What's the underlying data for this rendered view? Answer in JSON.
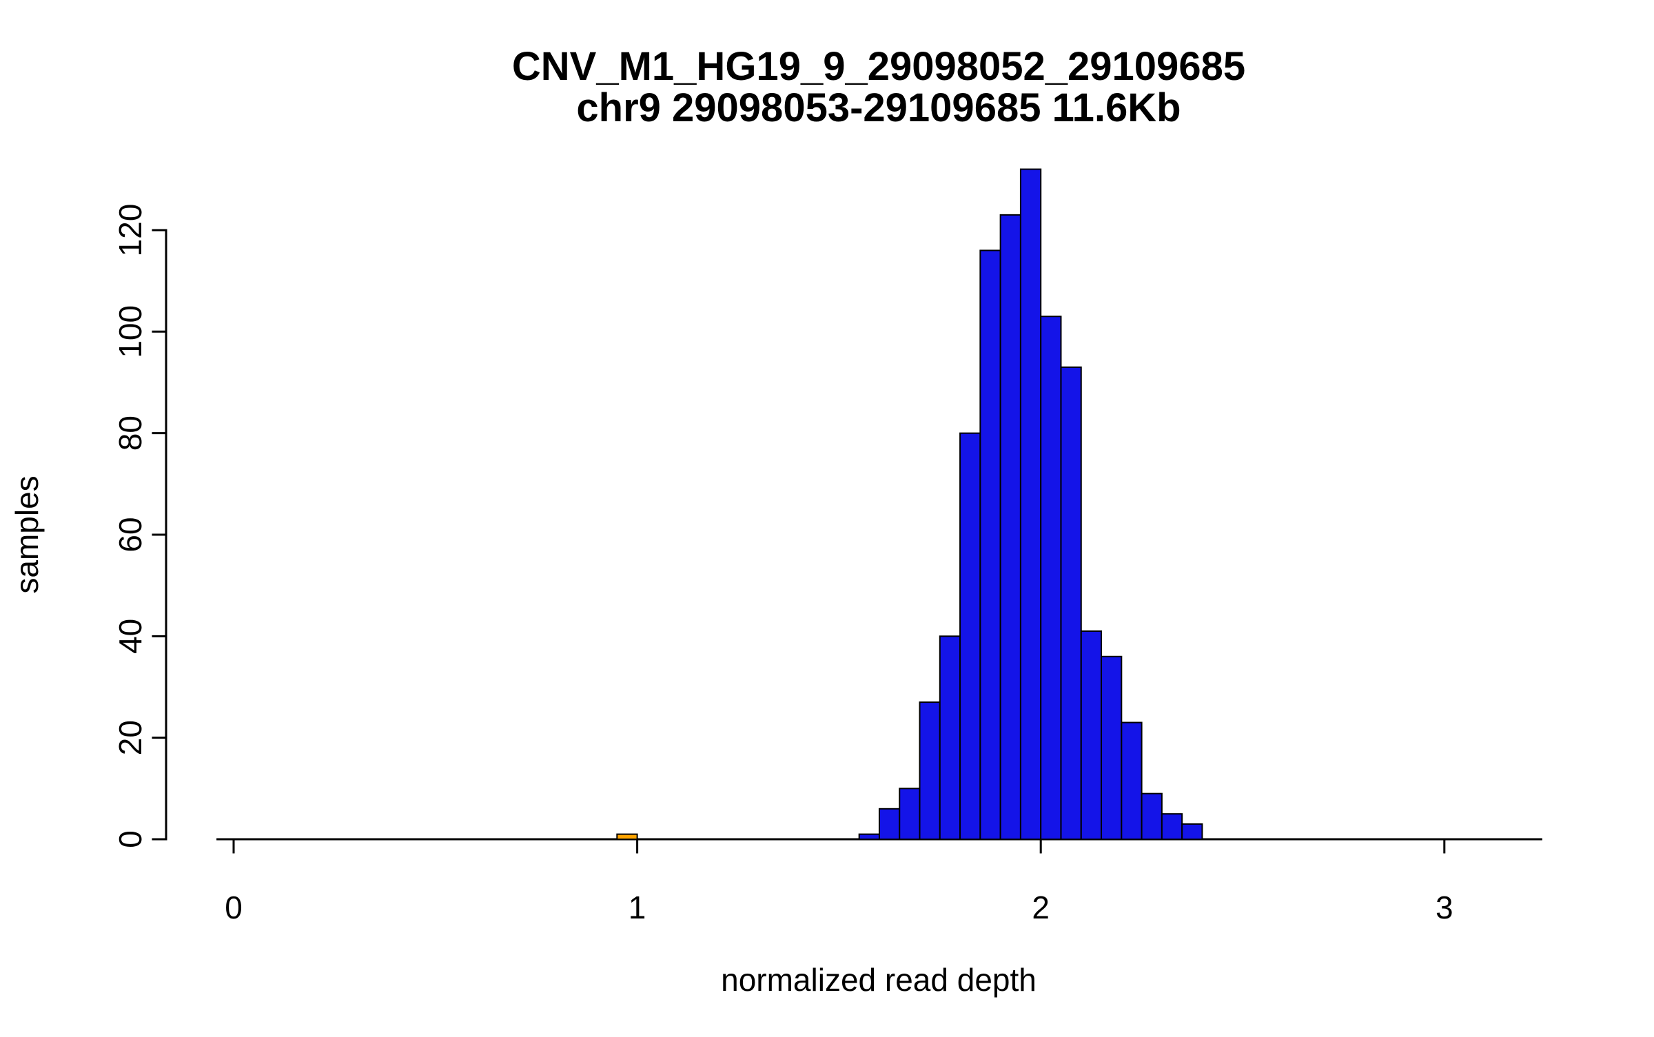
{
  "page": {
    "background": "#FFFFFF"
  },
  "chart_data": {
    "type": "bar",
    "subtype": "histogram",
    "title": "CNV_M1_HG19_9_29098052_29109685",
    "subtitle": "chr9 29098053-29109685 11.6Kb",
    "xlabel": "normalized read depth",
    "ylabel": "samples",
    "x_ticks": [
      "0",
      "1",
      "2",
      "3"
    ],
    "x_tick_values": [
      0,
      1,
      2,
      3
    ],
    "y_ticks": [
      "0",
      "20",
      "40",
      "60",
      "80",
      "100",
      "120"
    ],
    "y_tick_values": [
      0,
      20,
      40,
      60,
      80,
      100,
      120
    ],
    "xlim": [
      -0.04,
      3.24
    ],
    "ylim": [
      0,
      132
    ],
    "grid": false,
    "legend": false,
    "bin_width": 0.05,
    "colors": {
      "bar_fill": "#1414E8",
      "outlier_fill": "#FFA500",
      "bar_edge": "#000000",
      "axis": "#000000",
      "text": "#000000"
    },
    "bars": [
      {
        "x": 0.95,
        "count": 1,
        "series": "outlier"
      },
      {
        "x": 1.55,
        "count": 1,
        "series": "main"
      },
      {
        "x": 1.6,
        "count": 6,
        "series": "main"
      },
      {
        "x": 1.65,
        "count": 10,
        "series": "main"
      },
      {
        "x": 1.7,
        "count": 27,
        "series": "main"
      },
      {
        "x": 1.75,
        "count": 40,
        "series": "main"
      },
      {
        "x": 1.8,
        "count": 80,
        "series": "main"
      },
      {
        "x": 1.85,
        "count": 116,
        "series": "main"
      },
      {
        "x": 1.9,
        "count": 123,
        "series": "main"
      },
      {
        "x": 1.95,
        "count": 132,
        "series": "main"
      },
      {
        "x": 2.0,
        "count": 103,
        "series": "main"
      },
      {
        "x": 2.05,
        "count": 93,
        "series": "main"
      },
      {
        "x": 2.1,
        "count": 41,
        "series": "main"
      },
      {
        "x": 2.15,
        "count": 36,
        "series": "main"
      },
      {
        "x": 2.2,
        "count": 23,
        "series": "main"
      },
      {
        "x": 2.25,
        "count": 9,
        "series": "main"
      },
      {
        "x": 2.3,
        "count": 5,
        "series": "main"
      },
      {
        "x": 2.35,
        "count": 3,
        "series": "main"
      }
    ]
  }
}
